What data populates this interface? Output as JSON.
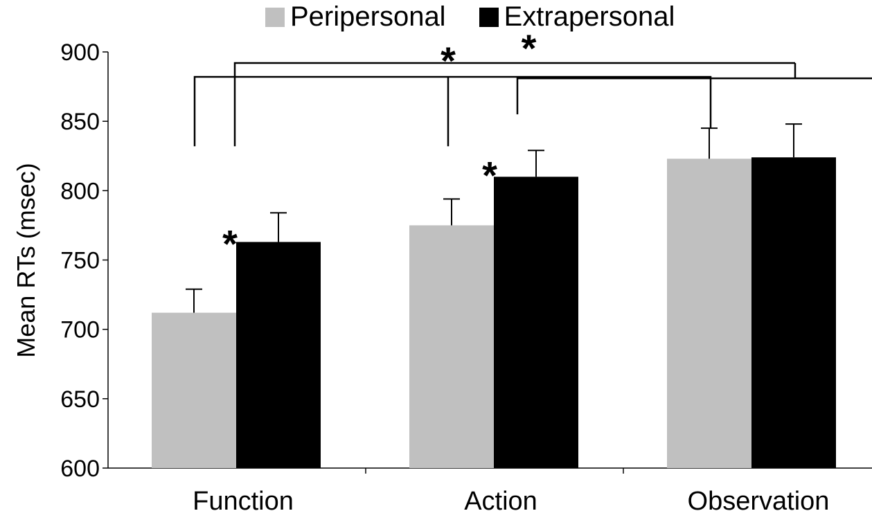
{
  "chart_data": {
    "type": "bar",
    "title": "",
    "xlabel": "",
    "ylabel": "Mean RTs (msec)",
    "ylim": [
      600,
      900
    ],
    "yticks": [
      600,
      650,
      700,
      750,
      800,
      850,
      900
    ],
    "categories": [
      "Function",
      "Action",
      "Observation"
    ],
    "series": [
      {
        "name": "Peripersonal",
        "color": "#c0c0c0",
        "values": [
          712,
          775,
          823
        ],
        "errors": [
          17,
          19,
          22
        ]
      },
      {
        "name": "Extrapersonal",
        "color": "#000000",
        "values": [
          763,
          810,
          824
        ],
        "errors": [
          21,
          19,
          24
        ]
      }
    ],
    "grid": false,
    "legend_position": "top",
    "annotations": [
      {
        "type": "asterisk",
        "label": "*",
        "target": "Function-Extrapersonal"
      },
      {
        "type": "asterisk",
        "label": "*",
        "target": "Action-Extrapersonal"
      },
      {
        "type": "significance-bracket",
        "label": "*",
        "connects": [
          "Function",
          "Observation"
        ]
      },
      {
        "type": "significance-bracket",
        "label": "*",
        "connects": [
          "Action",
          "Observation"
        ]
      }
    ]
  }
}
